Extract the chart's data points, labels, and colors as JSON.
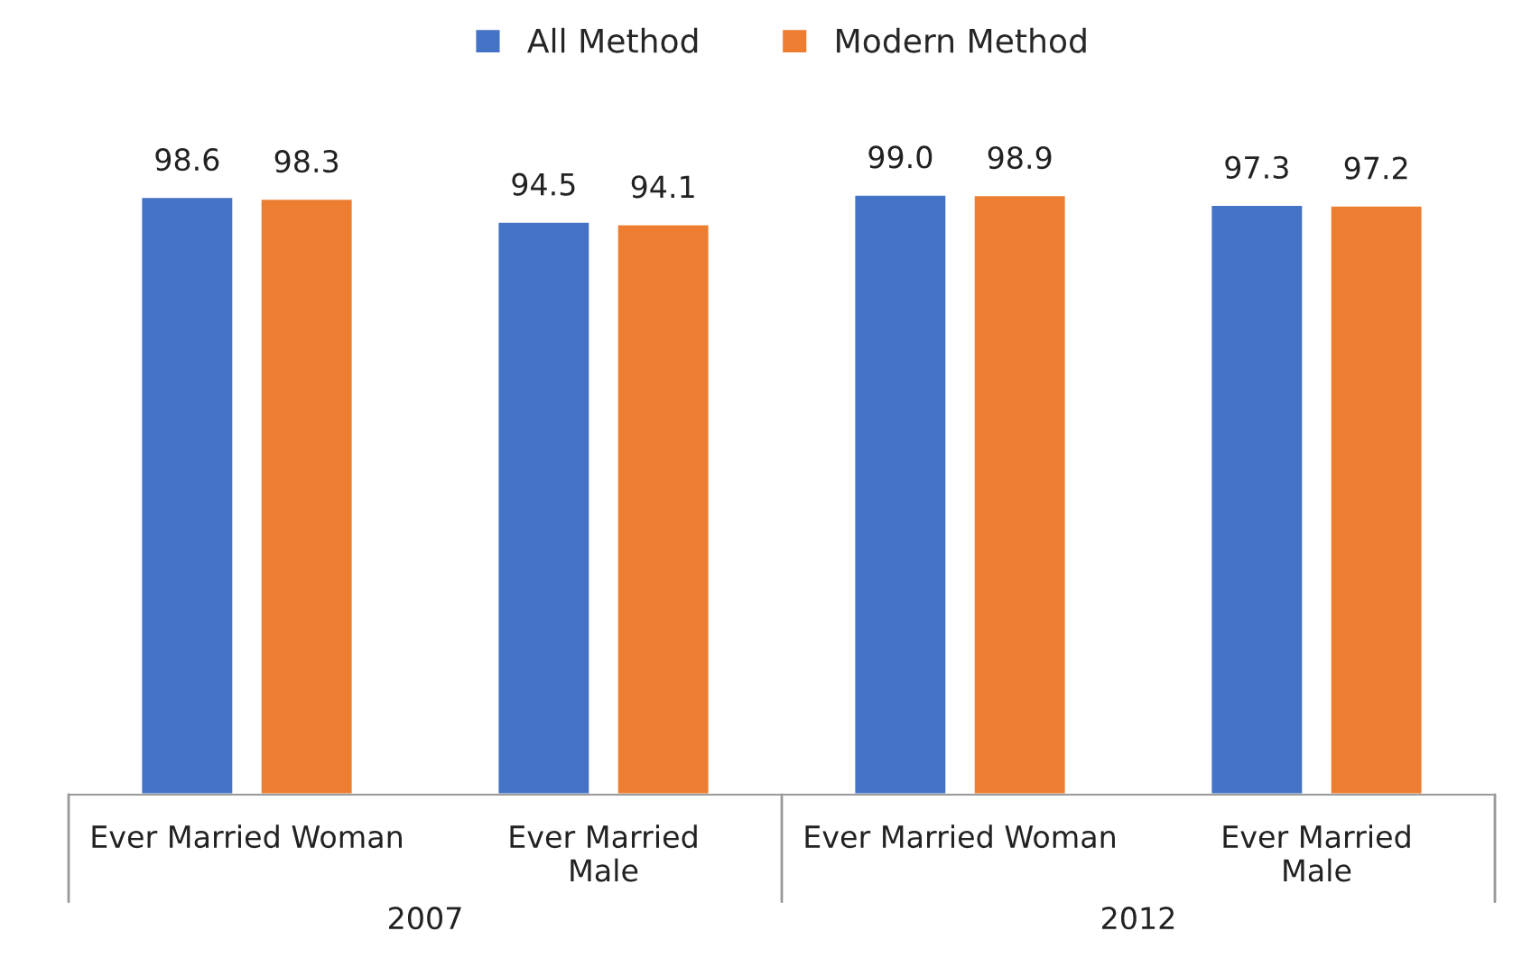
{
  "chart_data": {
    "type": "bar",
    "categories": [
      "Ever Married Woman",
      "Ever Married\nMale",
      "Ever Married Woman",
      "Ever Married\nMale"
    ],
    "series": [
      {
        "name": "All Method",
        "color": "#4472c4",
        "values": [
          98.6,
          94.5,
          99.0,
          97.3
        ],
        "value_labels": [
          "98.6",
          "94.5",
          "99.0",
          "97.3"
        ]
      },
      {
        "name": "Modern Method",
        "color": "#ed7d31",
        "values": [
          98.3,
          94.1,
          98.9,
          97.2
        ],
        "value_labels": [
          "98.3",
          "94.1",
          "98.9",
          "97.2"
        ]
      }
    ],
    "annotations": [
      "2007",
      "2012"
    ],
    "tick_labels": "x",
    "grid": false,
    "legend": "top"
  }
}
